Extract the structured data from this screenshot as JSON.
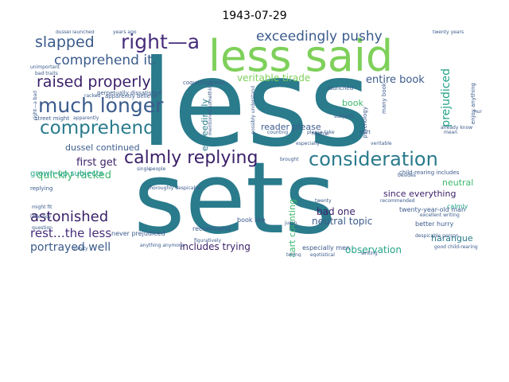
{
  "title": "1943-07-29",
  "colors": {
    "teal": "#2a7b8c",
    "blue": "#3b5b8c",
    "purple": "#472d7b",
    "dark_purple": "#3a1f68",
    "green": "#3db86e",
    "lime": "#7ed05a",
    "yellow": "#c7e020",
    "cyan": "#23a389"
  },
  "words": {
    "w1": "less",
    "w2": "sets",
    "w3": "less said",
    "w4": "right—a",
    "w5": "exceedingly pushy",
    "w6": "slapped",
    "w7": "comprehend it.",
    "w8": "raised properly",
    "w9": "much longer",
    "w10": "comprehend",
    "w11": "calmly replying",
    "w12": "consideration",
    "w13": "veritable tirade",
    "w14": "entire book",
    "w15": "prejudiced",
    "w16": "reader please",
    "w17": "dussel continued",
    "w18": "first get",
    "w19": "quickly racked",
    "w20": "grown-up subjects",
    "w21": "astonished",
    "w22": "rest…the less",
    "w23": "portrayed well",
    "w24": "includes trying",
    "w25": "bad one",
    "w26": "neutral topic",
    "w27": "since everything",
    "w28": "harangue",
    "w29": "observation",
    "w30": "neutral",
    "w31": "start counting",
    "w32": "exceedingly",
    "w33": "book",
    "w34": "calmly",
    "w35": "better hurry",
    "w36": "never prejudiced",
    "w37": "recommend",
    "w38": "book like",
    "w39": "especially men",
    "w40": "twenty-year-old man",
    "w41": "child-rearing includes",
    "w42": "perpetually dissatisfied",
    "w43": "apparently believe",
    "w44": "coquettishness",
    "w45": "launched",
    "w46": "years ago",
    "w47": "twenty years",
    "w48": "street might",
    "w49": "racked",
    "w50": "brought",
    "w51": "dussel launched",
    "w52": "psychology",
    "w53": "many book",
    "w54": "enjoy anything",
    "w55": "mean",
    "w56": "subjects",
    "w57": "already know",
    "w58": "anything anymore",
    "w59": "despicable person",
    "w60": "excellent writing",
    "w61": "good child-rearing",
    "w62": "thoroughly despicable",
    "w63": "might fit",
    "w64": "little boy",
    "w65": "replying",
    "w66": "unimportant",
    "w67": "possibly understand",
    "w68": "mentioned something",
    "w69": "neutral",
    "w70": "especially",
    "w71": "twenty",
    "w72": "recommended",
    "w73": "figuratively",
    "w74": "egotistical",
    "w75": "telling",
    "w76": "apparently",
    "w77": "veritable",
    "w78": "bad traits",
    "w79": "start",
    "w80": "please take",
    "w81": "right—a bad",
    "w82": "counting",
    "w83": "besides",
    "w84": "vanity",
    "w85": "writing",
    "w86": "single",
    "w87": "people",
    "w88": "jump",
    "w89": "question",
    "w90": "hurry"
  }
}
